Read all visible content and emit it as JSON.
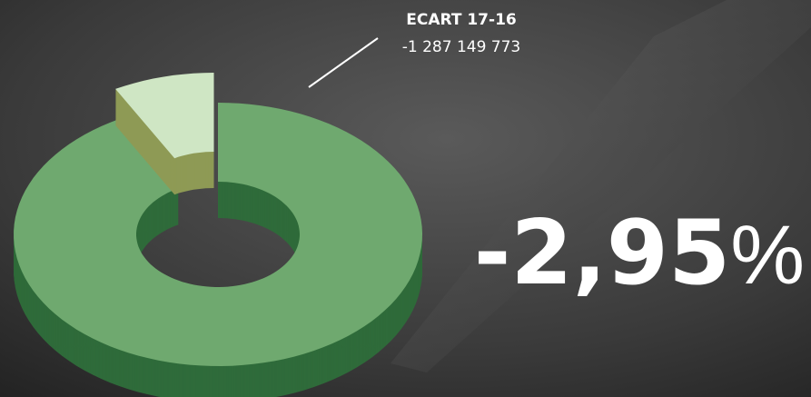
{
  "chart_data": {
    "type": "donut3d",
    "values": [
      92,
      8
    ],
    "colors": [
      "#6fa96f",
      "#cfe6c4"
    ],
    "side_colors": [
      "#2f6b3a",
      "#8e9a55"
    ],
    "exploded": [
      false,
      true
    ],
    "annotation": {
      "title": "ECART 17-16",
      "value": "-1 287 149 773"
    },
    "headline": {
      "number": "-2,95",
      "unit": "%"
    }
  }
}
